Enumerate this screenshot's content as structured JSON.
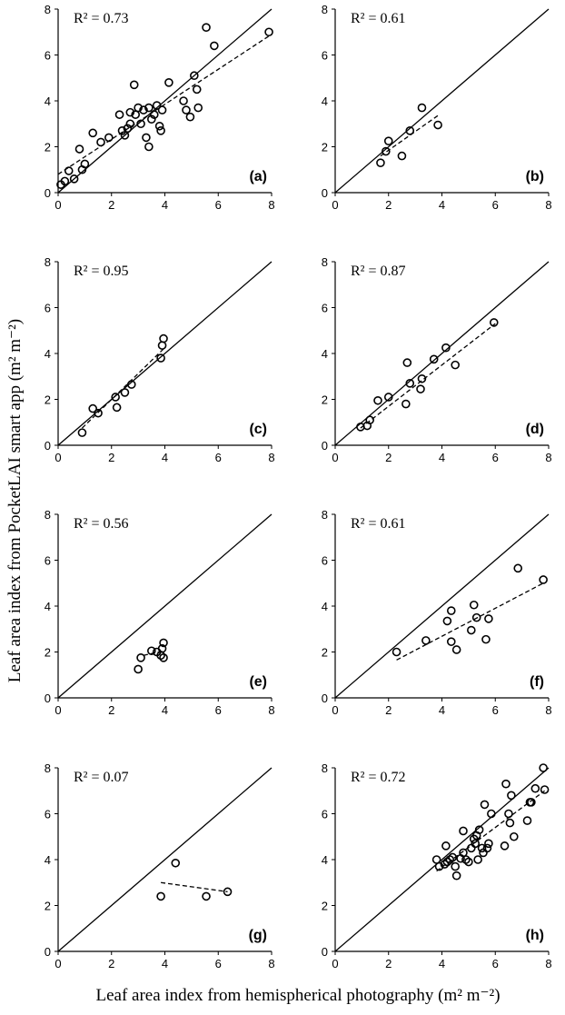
{
  "figure": {
    "ylabel": "Leaf area index from PocketLAI smart app (m² m⁻²)",
    "xlabel": "Leaf area index from hemispherical photography (m² m⁻²)"
  },
  "chart_data": [
    {
      "type": "scatter",
      "panel_label": "(a)",
      "r2_label": "R² = 0.73",
      "xlim": [
        0,
        8
      ],
      "ylim": [
        0,
        8
      ],
      "xticks": [
        "0",
        "2",
        "4",
        "6",
        "8"
      ],
      "yticks": [
        "0",
        "2",
        "4",
        "6",
        "8"
      ],
      "points": [
        [
          0.1,
          0.35
        ],
        [
          0.25,
          0.5
        ],
        [
          0.4,
          0.95
        ],
        [
          0.6,
          0.6
        ],
        [
          0.8,
          1.9
        ],
        [
          0.9,
          1.0
        ],
        [
          1.0,
          1.25
        ],
        [
          1.3,
          2.6
        ],
        [
          1.6,
          2.2
        ],
        [
          1.9,
          2.4
        ],
        [
          2.3,
          3.4
        ],
        [
          2.4,
          2.7
        ],
        [
          2.5,
          2.5
        ],
        [
          2.6,
          2.8
        ],
        [
          2.7,
          3.0
        ],
        [
          2.7,
          3.5
        ],
        [
          2.85,
          4.7
        ],
        [
          2.9,
          3.4
        ],
        [
          3.0,
          3.7
        ],
        [
          3.1,
          3.0
        ],
        [
          3.2,
          3.6
        ],
        [
          3.3,
          2.4
        ],
        [
          3.4,
          3.7
        ],
        [
          3.4,
          2.0
        ],
        [
          3.5,
          3.2
        ],
        [
          3.6,
          3.4
        ],
        [
          3.7,
          3.8
        ],
        [
          3.8,
          2.9
        ],
        [
          3.85,
          2.7
        ],
        [
          3.9,
          3.6
        ],
        [
          4.15,
          4.8
        ],
        [
          4.7,
          4.0
        ],
        [
          4.8,
          3.6
        ],
        [
          4.95,
          3.3
        ],
        [
          5.1,
          5.1
        ],
        [
          5.2,
          4.5
        ],
        [
          5.25,
          3.7
        ],
        [
          5.55,
          7.2
        ],
        [
          5.85,
          6.4
        ],
        [
          7.9,
          7.0
        ]
      ],
      "fit": [
        [
          0,
          0.8
        ],
        [
          8,
          6.9
        ]
      ]
    },
    {
      "type": "scatter",
      "panel_label": "(b)",
      "r2_label": "R² = 0.61",
      "xlim": [
        0,
        8
      ],
      "ylim": [
        0,
        8
      ],
      "xticks": [
        "0",
        "2",
        "4",
        "6",
        "8"
      ],
      "yticks": [
        "0",
        "2",
        "4",
        "6",
        "8"
      ],
      "points": [
        [
          1.7,
          1.3
        ],
        [
          1.9,
          1.8
        ],
        [
          2.0,
          2.25
        ],
        [
          2.5,
          1.6
        ],
        [
          2.8,
          2.7
        ],
        [
          3.25,
          3.7
        ],
        [
          3.85,
          2.95
        ]
      ],
      "fit": [
        [
          1.7,
          1.6
        ],
        [
          3.9,
          3.4
        ]
      ]
    },
    {
      "type": "scatter",
      "panel_label": "(c)",
      "r2_label": "R² = 0.95",
      "xlim": [
        0,
        8
      ],
      "ylim": [
        0,
        8
      ],
      "xticks": [
        "0",
        "2",
        "4",
        "6",
        "8"
      ],
      "yticks": [
        "0",
        "2",
        "4",
        "6",
        "8"
      ],
      "points": [
        [
          0.9,
          0.55
        ],
        [
          1.3,
          1.6
        ],
        [
          1.5,
          1.4
        ],
        [
          2.15,
          2.1
        ],
        [
          2.2,
          1.65
        ],
        [
          2.5,
          2.3
        ],
        [
          2.75,
          2.65
        ],
        [
          3.85,
          3.8
        ],
        [
          3.9,
          4.35
        ],
        [
          3.95,
          4.65
        ]
      ],
      "fit": [
        [
          0.9,
          0.75
        ],
        [
          3.95,
          4.2
        ]
      ]
    },
    {
      "type": "scatter",
      "panel_label": "(d)",
      "r2_label": "R² = 0.87",
      "xlim": [
        0,
        8
      ],
      "ylim": [
        0,
        8
      ],
      "xticks": [
        "0",
        "2",
        "4",
        "6",
        "8"
      ],
      "yticks": [
        "0",
        "2",
        "4",
        "6",
        "8"
      ],
      "points": [
        [
          0.95,
          0.8
        ],
        [
          1.2,
          0.85
        ],
        [
          1.3,
          1.1
        ],
        [
          1.6,
          1.95
        ],
        [
          2.0,
          2.1
        ],
        [
          2.65,
          1.8
        ],
        [
          2.7,
          3.6
        ],
        [
          2.8,
          2.7
        ],
        [
          3.2,
          2.45
        ],
        [
          3.25,
          2.9
        ],
        [
          3.7,
          3.75
        ],
        [
          4.15,
          4.25
        ],
        [
          4.5,
          3.5
        ],
        [
          5.95,
          5.35
        ]
      ],
      "fit": [
        [
          0.95,
          0.75
        ],
        [
          6.0,
          5.3
        ]
      ]
    },
    {
      "type": "scatter",
      "panel_label": "(e)",
      "r2_label": "R² = 0.56",
      "xlim": [
        0,
        8
      ],
      "ylim": [
        0,
        8
      ],
      "xticks": [
        "0",
        "2",
        "4",
        "6",
        "8"
      ],
      "yticks": [
        "0",
        "2",
        "4",
        "6",
        "8"
      ],
      "points": [
        [
          3.0,
          1.25
        ],
        [
          3.1,
          1.75
        ],
        [
          3.5,
          2.05
        ],
        [
          3.7,
          2.0
        ],
        [
          3.85,
          1.85
        ],
        [
          3.9,
          2.15
        ],
        [
          3.95,
          2.4
        ],
        [
          3.95,
          1.75
        ]
      ],
      "fit": [
        [
          3.2,
          1.85
        ],
        [
          3.95,
          2.05
        ]
      ]
    },
    {
      "type": "scatter",
      "panel_label": "(f)",
      "r2_label": "R² = 0.61",
      "xlim": [
        0,
        8
      ],
      "ylim": [
        0,
        8
      ],
      "xticks": [
        "0",
        "2",
        "4",
        "6",
        "8"
      ],
      "yticks": [
        "0",
        "2",
        "4",
        "6",
        "8"
      ],
      "points": [
        [
          2.3,
          2.0
        ],
        [
          3.4,
          2.5
        ],
        [
          4.2,
          3.35
        ],
        [
          4.35,
          3.8
        ],
        [
          4.35,
          2.45
        ],
        [
          4.55,
          2.1
        ],
        [
          5.1,
          2.95
        ],
        [
          5.2,
          4.05
        ],
        [
          5.3,
          3.5
        ],
        [
          5.65,
          2.55
        ],
        [
          5.75,
          3.45
        ],
        [
          6.85,
          5.65
        ],
        [
          7.8,
          5.15
        ]
      ],
      "fit": [
        [
          2.3,
          1.65
        ],
        [
          7.8,
          5.0
        ]
      ]
    },
    {
      "type": "scatter",
      "panel_label": "(g)",
      "r2_label": "R² = 0.07",
      "xlim": [
        0,
        8
      ],
      "ylim": [
        0,
        8
      ],
      "xticks": [
        "0",
        "2",
        "4",
        "6",
        "8"
      ],
      "yticks": [
        "0",
        "2",
        "4",
        "6",
        "8"
      ],
      "points": [
        [
          3.85,
          2.4
        ],
        [
          4.4,
          3.85
        ],
        [
          5.55,
          2.4
        ],
        [
          6.35,
          2.6
        ]
      ],
      "fit": [
        [
          3.85,
          3.0
        ],
        [
          6.35,
          2.6
        ]
      ]
    },
    {
      "type": "scatter",
      "panel_label": "(h)",
      "r2_label": "R² = 0.72",
      "xlim": [
        0,
        8
      ],
      "ylim": [
        0,
        8
      ],
      "xticks": [
        "0",
        "2",
        "4",
        "6",
        "8"
      ],
      "yticks": [
        "0",
        "2",
        "4",
        "6",
        "8"
      ],
      "points": [
        [
          3.8,
          4.0
        ],
        [
          3.9,
          3.7
        ],
        [
          4.1,
          3.8
        ],
        [
          4.15,
          4.6
        ],
        [
          4.2,
          3.9
        ],
        [
          4.3,
          4.0
        ],
        [
          4.4,
          4.1
        ],
        [
          4.5,
          3.7
        ],
        [
          4.55,
          3.3
        ],
        [
          4.7,
          4.05
        ],
        [
          4.8,
          4.3
        ],
        [
          4.8,
          5.25
        ],
        [
          4.9,
          4.0
        ],
        [
          5.0,
          3.9
        ],
        [
          5.1,
          4.5
        ],
        [
          5.2,
          4.9
        ],
        [
          5.25,
          4.7
        ],
        [
          5.3,
          5.05
        ],
        [
          5.35,
          4.0
        ],
        [
          5.4,
          5.3
        ],
        [
          5.5,
          4.5
        ],
        [
          5.55,
          4.3
        ],
        [
          5.6,
          6.4
        ],
        [
          5.7,
          4.5
        ],
        [
          5.75,
          4.7
        ],
        [
          5.85,
          6.0
        ],
        [
          6.35,
          4.6
        ],
        [
          6.4,
          7.3
        ],
        [
          6.5,
          6.0
        ],
        [
          6.55,
          5.6
        ],
        [
          6.6,
          6.8
        ],
        [
          6.7,
          5.0
        ],
        [
          7.2,
          5.7
        ],
        [
          7.3,
          6.5
        ],
        [
          7.35,
          6.5
        ],
        [
          7.5,
          7.1
        ],
        [
          7.8,
          8.0
        ],
        [
          7.85,
          7.05
        ]
      ],
      "fit": [
        [
          3.8,
          3.5
        ],
        [
          7.85,
          7.0
        ]
      ]
    }
  ]
}
